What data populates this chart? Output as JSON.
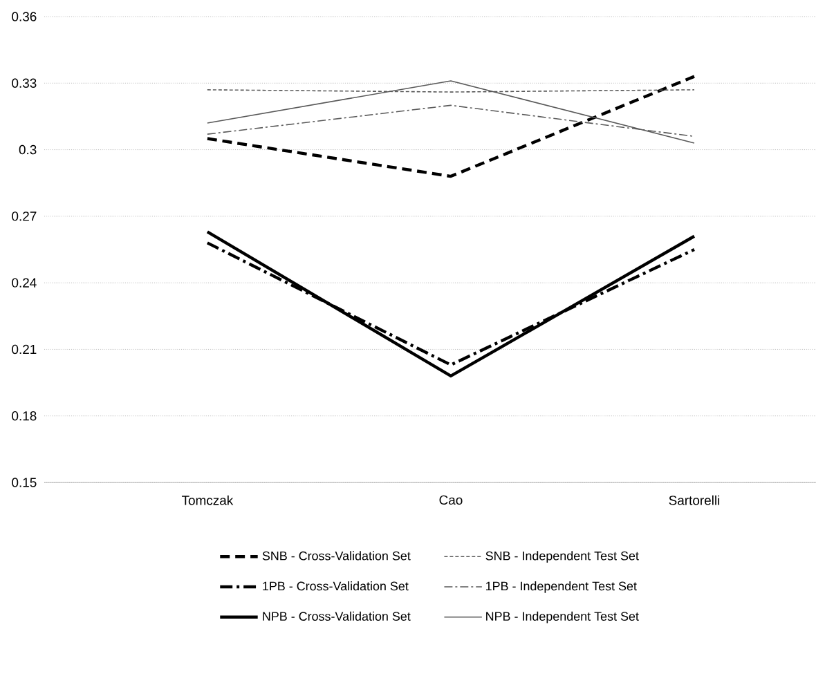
{
  "chart_data": {
    "type": "line",
    "categories": [
      "Tomczak",
      "Cao",
      "Sartorelli"
    ],
    "series": [
      {
        "name": "SNB - Cross-Validation Set",
        "color": "#000000",
        "line_style": "dashed",
        "values": [
          0.305,
          0.288,
          0.333
        ]
      },
      {
        "name": "SNB - Independent Test Set",
        "color": "#595959",
        "line_style": "dotted",
        "values": [
          0.327,
          0.326,
          0.327
        ]
      },
      {
        "name": "1PB - Cross-Validation Set",
        "color": "#000000",
        "line_style": "dashdot",
        "values": [
          0.258,
          0.203,
          0.255
        ]
      },
      {
        "name": "1PB - Independent Test Set",
        "color": "#595959",
        "line_style": "dashdot",
        "values": [
          0.307,
          0.32,
          0.306
        ]
      },
      {
        "name": "NPB - Cross-Validation Set",
        "color": "#000000",
        "line_style": "solid",
        "values": [
          0.263,
          0.198,
          0.261
        ]
      },
      {
        "name": "NPB - Independent Test Set",
        "color": "#595959",
        "line_style": "solid",
        "values": [
          0.312,
          0.331,
          0.303
        ]
      }
    ],
    "ylim": [
      0.15,
      0.36
    ],
    "yticks": [
      0.15,
      0.18,
      0.21,
      0.24,
      0.27,
      0.3,
      0.33,
      0.36
    ],
    "grid": "y",
    "legend": "bottom",
    "marker": "none"
  }
}
